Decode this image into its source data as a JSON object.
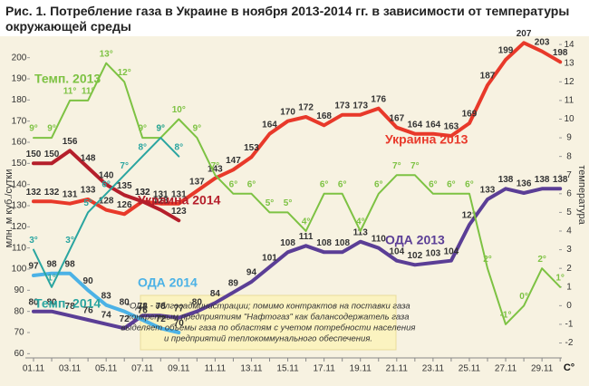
{
  "chart_data": {
    "type": "line",
    "title": [
      "Рис. 1. Потребление газа в Украине в  ноября 2013-2014 гг. в зависимости от температуры",
      "окружающей среды"
    ],
    "ylabel": "млн. м куб./сутки",
    "y2label": "температура",
    "y2unit": "C°",
    "categories": [
      "01.11",
      null,
      "03.11",
      null,
      "05.11",
      null,
      "07.11",
      null,
      "09.11",
      null,
      "11.11",
      null,
      "13.11",
      null,
      "15.11",
      null,
      "17.11",
      null,
      "19.11",
      null,
      "21.11",
      null,
      "23.11",
      null,
      "25.11",
      null,
      "27.11",
      null,
      "29.11",
      null
    ],
    "ylim": [
      58,
      208
    ],
    "yticks": [
      60,
      70,
      80,
      90,
      100,
      110,
      120,
      130,
      140,
      150,
      160,
      170,
      180,
      190,
      200
    ],
    "y2lim": [
      -2.8,
      14.2
    ],
    "y2ticks": [
      -2,
      -1,
      0,
      1,
      2,
      3,
      4,
      5,
      6,
      7,
      8,
      9,
      10,
      11,
      12,
      13,
      14
    ],
    "series": [
      {
        "name": "Украина 2013",
        "color": "#e8392a",
        "values": [
          132,
          132,
          131,
          133,
          128,
          126,
          132,
          131,
          131,
          137,
          143,
          147,
          153,
          164,
          170,
          172,
          168,
          173,
          173,
          176,
          167,
          164,
          164,
          163,
          169,
          187,
          199,
          207,
          203,
          198
        ]
      },
      {
        "name": "Украина 2014",
        "color": "#b51f2b",
        "values": [
          150,
          150,
          156,
          148,
          140,
          135,
          132,
          128,
          123,
          null,
          null,
          null,
          null,
          null,
          null,
          null,
          null,
          null,
          null,
          null,
          null,
          null,
          null,
          null,
          null,
          null,
          null,
          null,
          null,
          null
        ]
      },
      {
        "name": "ОДА 2013",
        "color": "#5b3e96",
        "values": [
          80,
          80,
          78,
          76,
          74,
          72,
          78,
          78,
          77,
          80,
          84,
          89,
          94,
          101,
          108,
          111,
          108,
          108,
          113,
          110,
          104,
          102,
          103,
          104,
          121,
          133,
          138,
          136,
          138,
          138
        ]
      },
      {
        "name": "ОДА 2014",
        "color": "#4cb2e6",
        "values": [
          97,
          98,
          98,
          90,
          83,
          80,
          76,
          72,
          70,
          null,
          null,
          null,
          null,
          null,
          null,
          null,
          null,
          null,
          null,
          null,
          null,
          null,
          null,
          null,
          null,
          null,
          null,
          null,
          null,
          null
        ]
      },
      {
        "name": "Темп. 2013",
        "color": "#7dc243",
        "axis": "y2",
        "values": [
          9,
          9,
          11,
          11,
          13,
          12,
          9,
          9,
          10,
          9,
          7,
          6,
          6,
          5,
          5,
          4,
          6,
          6,
          4,
          6,
          7,
          7,
          6,
          6,
          6,
          2,
          -1,
          0,
          2,
          1
        ],
        "value_labels": [
          "9°",
          "9°",
          "11°",
          "11°",
          "13°",
          "12°",
          "9°",
          "9°",
          "10°",
          "9°",
          "7°",
          "6°",
          "6°",
          "5°",
          "5°",
          "4°",
          "6°",
          "6°",
          "4°",
          "6°",
          "7°",
          "7°",
          "6°",
          "6°",
          "6°",
          "2°",
          "-1°",
          "0°",
          "2°",
          "1°"
        ]
      },
      {
        "name": "Темп. 2014",
        "color": "#2aa5a0",
        "axis": "y2",
        "values": [
          3,
          1,
          3,
          5,
          6,
          7,
          8,
          9,
          8,
          null,
          null,
          null,
          null,
          null,
          null,
          null,
          null,
          null,
          null,
          null,
          null,
          null,
          null,
          null,
          null,
          null,
          null,
          null,
          null,
          null
        ],
        "value_labels": [
          "3°",
          "1°",
          "3°",
          "5°",
          "6°",
          "7°",
          "8°",
          "9°",
          "8°",
          null,
          null,
          null,
          null,
          null,
          null,
          null,
          null,
          null,
          null,
          null,
          null,
          null,
          null,
          null,
          null,
          null,
          null,
          null,
          null,
          null
        ]
      }
    ],
    "note": [
      "*ОДА - облгосадминистрации; помимо контрактов на поставки газа",
      "конкретным предприятиям \"Нафтогаз\" как балансодержатель газа",
      "выделяет объемы газа по областям с учетом потребности населения",
      "и предприятий теплокоммунального обеспечения."
    ]
  }
}
